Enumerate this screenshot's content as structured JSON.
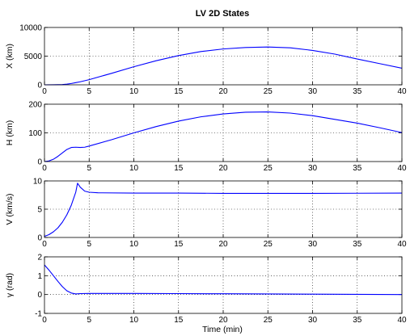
{
  "figure": {
    "title": "LV 2D States",
    "xlabel": "Time (min)"
  },
  "chart_data": [
    {
      "type": "line",
      "ylabel": "X (km)",
      "xlim": [
        0,
        40
      ],
      "ylim": [
        0,
        10000
      ],
      "xticks": [
        0,
        5,
        10,
        15,
        20,
        25,
        30,
        35,
        40
      ],
      "yticks": [
        0,
        5000,
        10000
      ],
      "grid": true,
      "line_color": "#0000ff",
      "series": [
        {
          "x": [
            0,
            1,
            2,
            2.5,
            3,
            3.5,
            4,
            5,
            7.5,
            10,
            12.5,
            15,
            17.5,
            20,
            22.5,
            25,
            27.5,
            30,
            32.5,
            35,
            37.5,
            40
          ],
          "values": [
            0,
            5,
            40,
            110,
            230,
            380,
            530,
            900,
            2000,
            3150,
            4200,
            5100,
            5800,
            6250,
            6500,
            6600,
            6450,
            6000,
            5350,
            4500,
            3700,
            2900
          ]
        }
      ]
    },
    {
      "type": "line",
      "ylabel": "H (km)",
      "xlim": [
        0,
        40
      ],
      "ylim": [
        0,
        200
      ],
      "xticks": [
        0,
        5,
        10,
        15,
        20,
        25,
        30,
        35,
        40
      ],
      "yticks": [
        0,
        100,
        200
      ],
      "grid": true,
      "line_color": "#0000ff",
      "series": [
        {
          "x": [
            0,
            0.5,
            1,
            1.5,
            2,
            2.5,
            3,
            3.5,
            4,
            4.5,
            5,
            7.5,
            10,
            12.5,
            15,
            17.5,
            20,
            22.5,
            25,
            27.5,
            30,
            32.5,
            35,
            37.5,
            40
          ],
          "values": [
            0,
            2,
            8,
            18,
            30,
            42,
            49,
            50,
            49,
            50,
            54,
            76,
            100,
            122,
            141,
            156,
            166,
            172,
            173,
            169,
            160,
            147,
            134,
            118,
            101
          ]
        }
      ]
    },
    {
      "type": "line",
      "ylabel": "V (km/s)",
      "xlim": [
        0,
        40
      ],
      "ylim": [
        0,
        10
      ],
      "xticks": [
        0,
        5,
        10,
        15,
        20,
        25,
        30,
        35,
        40
      ],
      "yticks": [
        0,
        5,
        10
      ],
      "grid": true,
      "line_color": "#0000ff",
      "series": [
        {
          "x": [
            0,
            0.5,
            1,
            1.5,
            2,
            2.5,
            3,
            3.5,
            3.7,
            4,
            4.5,
            5,
            6,
            10,
            15,
            20,
            25,
            30,
            35,
            40
          ],
          "values": [
            0.2,
            0.5,
            1,
            1.7,
            2.7,
            4,
            5.7,
            8,
            9.6,
            8.9,
            8.2,
            8,
            7.9,
            7.85,
            7.85,
            7.8,
            7.8,
            7.8,
            7.82,
            7.85
          ]
        }
      ]
    },
    {
      "type": "line",
      "ylabel": "γ (rad)",
      "xlim": [
        0,
        40
      ],
      "ylim": [
        -1,
        2
      ],
      "xticks": [
        0,
        5,
        10,
        15,
        20,
        25,
        30,
        35,
        40
      ],
      "yticks": [
        -1,
        0,
        1,
        2
      ],
      "grid": true,
      "line_color": "#0000ff",
      "series": [
        {
          "x": [
            0,
            0.5,
            1,
            1.5,
            2,
            2.5,
            3,
            3.5,
            4,
            5,
            10,
            15,
            20,
            25,
            30,
            35,
            40
          ],
          "values": [
            1.57,
            1.3,
            1.0,
            0.7,
            0.42,
            0.2,
            0.08,
            0.03,
            0.05,
            0.06,
            0.06,
            0.05,
            0.04,
            0.03,
            0.02,
            0.01,
            0.0
          ]
        }
      ]
    }
  ]
}
